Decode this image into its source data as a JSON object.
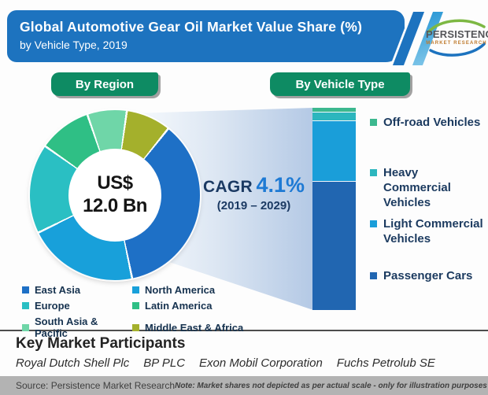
{
  "header": {
    "title": "Global Automotive Gear Oil Market Value Share (%)",
    "subtitle": "by Vehicle Type, 2019"
  },
  "logo": {
    "name": "PERSISTENCE",
    "tagline": "MARKET RESEARCH"
  },
  "buttons": {
    "region": "By Region",
    "vehicle_type": "By Vehicle Type"
  },
  "donut_center": {
    "line1": "US$",
    "line2": "12.0 Bn"
  },
  "cagr": {
    "label": "CAGR",
    "value": "4.1%",
    "period": "(2019 – 2029)"
  },
  "participants": {
    "heading": "Key Market Participants",
    "companies": [
      "Royal Dutch Shell Plc",
      "BP PLC",
      "Exon Mobil Corporation",
      "Fuchs Petrolub SE"
    ]
  },
  "footer": {
    "source": "Source: Persistence Market Research",
    "note": "Note: Market shares not depicted as per actual scale - only for illustration purposes"
  },
  "colors": {
    "header_blue": "#1d73bf",
    "button_green": "#0e8b63",
    "beam_light": "#f7fafd",
    "beam_dark": "#b4c9e5",
    "accent_value_blue": "#1e7ad4",
    "navy_text": "#1b3a63",
    "footer_gray": "#b3b3b3"
  },
  "chart_data": [
    {
      "type": "pie",
      "subtype": "donut",
      "title": "Global Automotive Gear Oil Market Value Share (%) by Region, 2019",
      "unit": "%",
      "center_label": "US$ 12.0 Bn",
      "start_angle_deg": 38,
      "labels": [
        "East Asia",
        "North America",
        "Europe",
        "Latin America",
        "South Asia & Pacific",
        "Middle East & Africa"
      ],
      "values": [
        36,
        21,
        17,
        10,
        7.5,
        8.5
      ],
      "colors": [
        "#1e70c6",
        "#18a0da",
        "#2abfc3",
        "#2fbf85",
        "#6fd6a8",
        "#a4b02c"
      ],
      "legend_position": "bottom",
      "estimated_from_arc_angles": true
    },
    {
      "type": "bar",
      "subtype": "stacked-single-column",
      "title": "Global Automotive Gear Oil Market Value Share (%) by Vehicle Type, 2019",
      "unit": "% of bar height (illustrative, not to actual scale)",
      "categories": [
        "2019"
      ],
      "series": [
        {
          "name": "Off-road Vehicles",
          "values": [
            2
          ],
          "color": "#3cb88f"
        },
        {
          "name": "Heavy Commercial Vehicles",
          "values": [
            4
          ],
          "color": "#2cb6be"
        },
        {
          "name": "Light Commercial Vehicles",
          "values": [
            30
          ],
          "color": "#1a9ed9"
        },
        {
          "name": "Passenger Cars",
          "values": [
            64
          ],
          "color": "#2166b1"
        }
      ],
      "legend_position": "right",
      "annotation": "CAGR 4.1% (2019 – 2029)"
    }
  ]
}
